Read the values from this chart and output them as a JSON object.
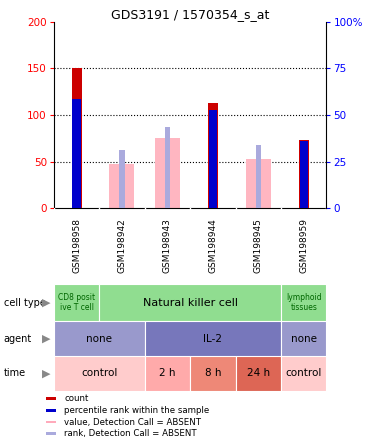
{
  "title": "GDS3191 / 1570354_s_at",
  "samples": [
    "GSM198958",
    "GSM198942",
    "GSM198943",
    "GSM198944",
    "GSM198945",
    "GSM198959"
  ],
  "bar_values": [
    150,
    0,
    0,
    113,
    0,
    73
  ],
  "pink_values": [
    150,
    47,
    75,
    113,
    53,
    73
  ],
  "blue_sq_values": [
    113,
    62,
    87,
    101,
    68,
    68
  ],
  "absent": [
    false,
    true,
    true,
    false,
    true,
    false
  ],
  "y_max": 200,
  "y_ticks": [
    0,
    50,
    100,
    150,
    200
  ],
  "y2_ticks": [
    0,
    25,
    50,
    75,
    100
  ],
  "y2_labels": [
    "0",
    "25",
    "50",
    "75",
    "100%"
  ],
  "cell_type_segments": [
    {
      "label": "CD8 posit\nive T cell",
      "start": 0,
      "end": 1,
      "color": "#90dd90",
      "fontsize": 5.5,
      "fontcolor": "#006600"
    },
    {
      "label": "Natural killer cell",
      "start": 1,
      "end": 5,
      "color": "#90dd90",
      "fontsize": 8,
      "fontcolor": "#000000"
    },
    {
      "label": "lymphoid\ntissues",
      "start": 5,
      "end": 6,
      "color": "#90dd90",
      "fontsize": 5.5,
      "fontcolor": "#006600"
    }
  ],
  "agent_segments": [
    {
      "label": "none",
      "start": 0,
      "end": 2,
      "color": "#9999cc"
    },
    {
      "label": "IL-2",
      "start": 2,
      "end": 5,
      "color": "#7777bb"
    },
    {
      "label": "none",
      "start": 5,
      "end": 6,
      "color": "#9999cc"
    }
  ],
  "time_segments": [
    {
      "label": "control",
      "start": 0,
      "end": 2,
      "color": "#ffcccc"
    },
    {
      "label": "2 h",
      "start": 2,
      "end": 3,
      "color": "#ffaaaa"
    },
    {
      "label": "8 h",
      "start": 3,
      "end": 4,
      "color": "#ee8877"
    },
    {
      "label": "24 h",
      "start": 4,
      "end": 5,
      "color": "#dd6655"
    },
    {
      "label": "control",
      "start": 5,
      "end": 6,
      "color": "#ffcccc"
    }
  ],
  "row_labels": [
    "cell type",
    "agent",
    "time"
  ],
  "legend_colors": [
    "#cc0000",
    "#0000cc",
    "#ffaabb",
    "#aaaadd"
  ],
  "legend_labels": [
    "count",
    "percentile rank within the sample",
    "value, Detection Call = ABSENT",
    "rank, Detection Call = ABSENT"
  ],
  "gsm_bg_color": "#cccccc",
  "chart_bg_color": "#ffffff",
  "fig_bg_color": "#ffffff"
}
